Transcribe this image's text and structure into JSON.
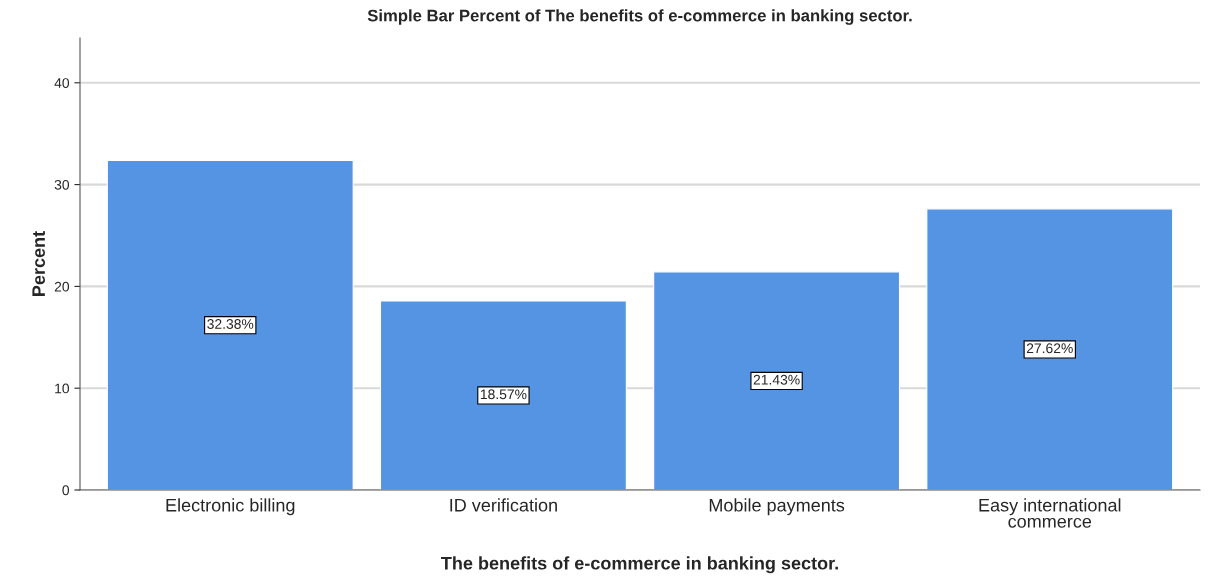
{
  "chart_data": {
    "type": "bar",
    "title": "Simple Bar Percent of The benefits of e-commerce in banking sector.",
    "xlabel": "The benefits of e-commerce in banking sector.",
    "ylabel": "Percent",
    "categories": [
      "Electronic billing",
      "ID verification",
      "Mobile payments",
      "Easy international\ncommerce"
    ],
    "values": [
      32.38,
      18.57,
      21.43,
      27.62
    ],
    "value_labels": [
      "32.38%",
      "18.57%",
      "21.43%",
      "27.62%"
    ],
    "color": "#5594e3",
    "ylim": [
      0,
      44.4
    ],
    "yticks": [
      0,
      10,
      20,
      30,
      40
    ],
    "grid": "y"
  }
}
